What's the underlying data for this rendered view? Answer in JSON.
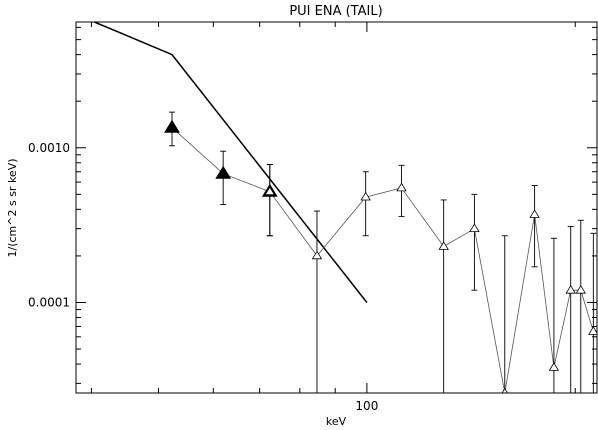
{
  "chart_data": {
    "type": "scatter",
    "title": "PUI ENA (TAIL)",
    "xlabel": "keV",
    "ylabel": "1/(cm^2 s sr keV)",
    "x_scale": "log",
    "y_scale": "log",
    "xlim": [
      38,
      215
    ],
    "ylim": [
      2.6e-05,
      0.0065
    ],
    "x_ticks": [
      {
        "value": 100,
        "label": "100"
      }
    ],
    "y_ticks": [
      {
        "value": 0.0001,
        "label": "0.0001"
      },
      {
        "value": 0.001,
        "label": "0.0010"
      }
    ],
    "grid": false,
    "legend": "none",
    "model_line": {
      "x": [
        40.4,
        52.3,
        100
      ],
      "y": [
        0.0065,
        0.004,
        0.0001
      ]
    },
    "series": [
      {
        "marker": "filled-triangle",
        "x": [
          52.3,
          62.0,
          72.4
        ],
        "y": [
          0.00135,
          0.00068,
          0.00052
        ],
        "err_low": [
          0.00103,
          0.00043,
          0.00027
        ],
        "err_high": [
          0.0017,
          0.00095,
          0.00078
        ]
      },
      {
        "marker": "open-triangle",
        "x": [
          72.4,
          84.7,
          99.6,
          112.2,
          129.1,
          143.0,
          158.2,
          174.7,
          186.3,
          197.0,
          203.7,
          212.4
        ],
        "y": [
          0.00052,
          0.0002,
          0.00048,
          0.00055,
          0.00023,
          0.0003,
          2.6e-05,
          0.00037,
          3.8e-05,
          0.00012,
          0.00012,
          6.5e-05
        ],
        "err_low": [
          0.00027,
          2.6e-05,
          0.00027,
          0.00036,
          2.6e-05,
          0.00012,
          2.6e-05,
          0.00017,
          2.6e-05,
          2.6e-05,
          2.6e-05,
          2.6e-05
        ],
        "err_high": [
          0.00078,
          0.00039,
          0.0007,
          0.00077,
          0.00046,
          0.0005,
          0.00027,
          0.00057,
          0.00026,
          0.00031,
          0.00034,
          0.00028
        ]
      }
    ]
  }
}
